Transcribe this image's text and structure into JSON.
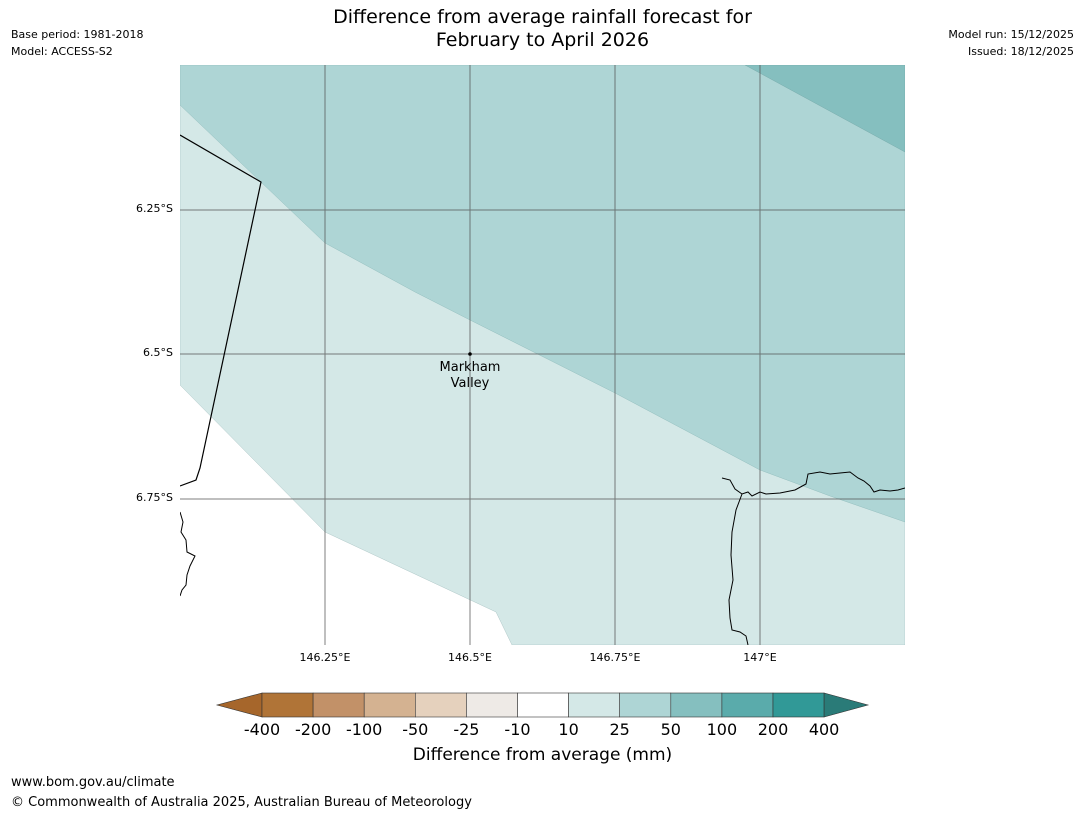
{
  "header": {
    "title_line1": "Difference from average rainfall forecast for",
    "title_line2": "February to April 2026",
    "base_period": "Base period: 1981-2018",
    "model": "Model: ACCESS-S2",
    "model_run": "Model run: 15/12/2025",
    "issued": "Issued: 18/12/2025"
  },
  "map": {
    "lat_labels": [
      "6.25°S",
      "6.5°S",
      "6.75°S"
    ],
    "lon_labels": [
      "146.25°E",
      "146.5°E",
      "146.75°E",
      "147°E"
    ],
    "place": {
      "name_line1": "Markham",
      "name_line2": "Valley"
    }
  },
  "colorbar": {
    "title": "Difference from average (mm)",
    "ticks": [
      "-400",
      "-200",
      "-100",
      "-50",
      "-25",
      "-10",
      "10",
      "25",
      "50",
      "100",
      "200",
      "400"
    ],
    "colors": [
      "#a6662b",
      "#b07437",
      "#c29168",
      "#d4b291",
      "#e5d1bd",
      "#eeeae6",
      "#ffffff",
      "#d4e8e7",
      "#aed5d5",
      "#85bfbf",
      "#5aabab",
      "#319997",
      "#2a7b78"
    ]
  },
  "footer": {
    "url": "www.bom.gov.au/climate",
    "copyright": "© Commonwealth of Australia 2025, Australian Bureau of Meteorology"
  }
}
